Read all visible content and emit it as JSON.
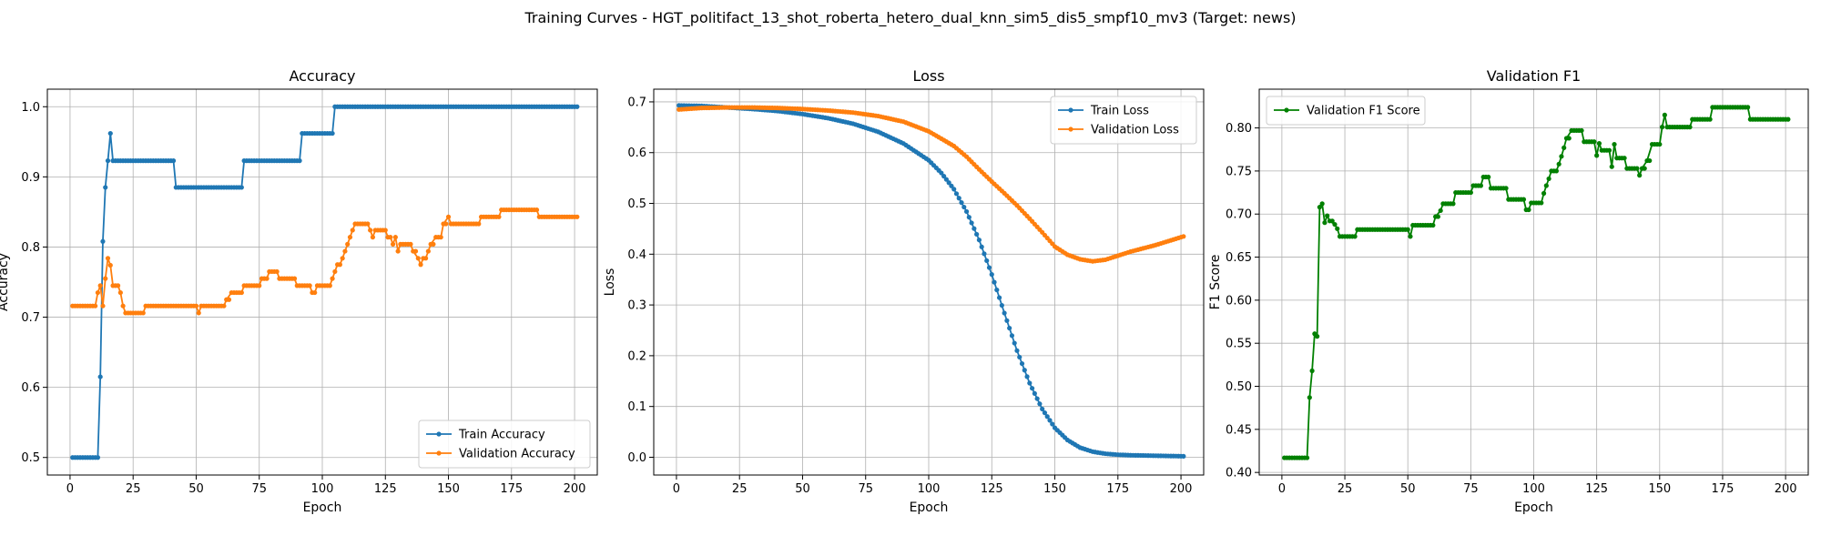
{
  "figure": {
    "suptitle": "Training Curves - HGT_politifact_13_shot_roberta_hetero_dual_knn_sim5_dis5_smpf10_mv3 (Target: news)"
  },
  "colors": {
    "blue": "#1f77b4",
    "orange": "#ff7f0e",
    "green": "#008000",
    "grid": "#b0b0b0"
  },
  "chart_data": [
    {
      "type": "line",
      "title": "Accuracy",
      "xlabel": "Epoch",
      "ylabel": "Accuracy",
      "xlim": [
        -9,
        209
      ],
      "ylim": [
        0.475,
        1.025
      ],
      "xticks": [
        0,
        25,
        50,
        75,
        100,
        125,
        150,
        175,
        200
      ],
      "yticks": [
        0.5,
        0.6,
        0.7,
        0.8,
        0.9,
        1.0
      ],
      "ytick_labels": [
        "0.5",
        "0.6",
        "0.7",
        "0.8",
        "0.9",
        "1.0"
      ],
      "grid": true,
      "legend_position": "lower-right",
      "series": [
        {
          "name": "Train Accuracy",
          "color": "#1f77b4",
          "points": [
            [
              1,
              0.5
            ],
            [
              11,
              0.5
            ],
            [
              12,
              0.615
            ],
            [
              13,
              0.808
            ],
            [
              14,
              0.885
            ],
            [
              15,
              0.923
            ],
            [
              16,
              0.962
            ],
            [
              17,
              0.923
            ],
            [
              41,
              0.923
            ],
            [
              42,
              0.885
            ],
            [
              68,
              0.885
            ],
            [
              69,
              0.923
            ],
            [
              91,
              0.923
            ],
            [
              92,
              0.962
            ],
            [
              104,
              0.962
            ],
            [
              105,
              1.0
            ],
            [
              201,
              1.0
            ]
          ]
        },
        {
          "name": "Validation Accuracy",
          "color": "#ff7f0e",
          "points": [
            [
              1,
              0.716
            ],
            [
              10,
              0.716
            ],
            [
              11,
              0.735
            ],
            [
              12,
              0.745
            ],
            [
              13,
              0.716
            ],
            [
              14,
              0.755
            ],
            [
              15,
              0.784
            ],
            [
              16,
              0.774
            ],
            [
              17,
              0.745
            ],
            [
              19,
              0.745
            ],
            [
              20,
              0.735
            ],
            [
              21,
              0.716
            ],
            [
              22,
              0.706
            ],
            [
              29,
              0.706
            ],
            [
              30,
              0.716
            ],
            [
              50,
              0.716
            ],
            [
              51,
              0.706
            ],
            [
              52,
              0.716
            ],
            [
              61,
              0.716
            ],
            [
              62,
              0.725
            ],
            [
              64,
              0.735
            ],
            [
              68,
              0.735
            ],
            [
              69,
              0.745
            ],
            [
              75,
              0.745
            ],
            [
              76,
              0.755
            ],
            [
              78,
              0.755
            ],
            [
              79,
              0.765
            ],
            [
              82,
              0.765
            ],
            [
              83,
              0.755
            ],
            [
              89,
              0.755
            ],
            [
              90,
              0.745
            ],
            [
              95,
              0.745
            ],
            [
              96,
              0.735
            ],
            [
              97,
              0.735
            ],
            [
              98,
              0.745
            ],
            [
              103,
              0.745
            ],
            [
              104,
              0.755
            ],
            [
              105,
              0.765
            ],
            [
              106,
              0.775
            ],
            [
              107,
              0.775
            ],
            [
              108,
              0.784
            ],
            [
              109,
              0.794
            ],
            [
              110,
              0.804
            ],
            [
              111,
              0.814
            ],
            [
              112,
              0.824
            ],
            [
              113,
              0.833
            ],
            [
              118,
              0.833
            ],
            [
              119,
              0.824
            ],
            [
              120,
              0.814
            ],
            [
              121,
              0.824
            ],
            [
              125,
              0.824
            ],
            [
              126,
              0.814
            ],
            [
              127,
              0.814
            ],
            [
              128,
              0.804
            ],
            [
              129,
              0.814
            ],
            [
              130,
              0.794
            ],
            [
              131,
              0.804
            ],
            [
              135,
              0.804
            ],
            [
              136,
              0.794
            ],
            [
              138,
              0.784
            ],
            [
              139,
              0.775
            ],
            [
              140,
              0.784
            ],
            [
              141,
              0.784
            ],
            [
              142,
              0.794
            ],
            [
              143,
              0.804
            ],
            [
              145,
              0.814
            ],
            [
              147,
              0.814
            ],
            [
              148,
              0.833
            ],
            [
              150,
              0.843
            ],
            [
              151,
              0.833
            ],
            [
              162,
              0.833
            ],
            [
              163,
              0.843
            ],
            [
              170,
              0.843
            ],
            [
              171,
              0.853
            ],
            [
              185,
              0.853
            ],
            [
              186,
              0.843
            ],
            [
              201,
              0.843
            ]
          ]
        }
      ]
    },
    {
      "type": "line",
      "title": "Loss",
      "xlabel": "Epoch",
      "ylabel": "Loss",
      "xlim": [
        -9,
        209
      ],
      "ylim": [
        -0.035,
        0.725
      ],
      "xticks": [
        0,
        25,
        50,
        75,
        100,
        125,
        150,
        175,
        200
      ],
      "yticks": [
        0.0,
        0.1,
        0.2,
        0.3,
        0.4,
        0.5,
        0.6,
        0.7
      ],
      "ytick_labels": [
        "0.0",
        "0.1",
        "0.2",
        "0.3",
        "0.4",
        "0.5",
        "0.6",
        "0.7"
      ],
      "grid": true,
      "legend_position": "upper-right",
      "series": [
        {
          "name": "Train Loss",
          "color": "#1f77b4",
          "points": [
            [
              1,
              0.693
            ],
            [
              10,
              0.692
            ],
            [
              20,
              0.689
            ],
            [
              30,
              0.686
            ],
            [
              40,
              0.682
            ],
            [
              50,
              0.676
            ],
            [
              60,
              0.668
            ],
            [
              70,
              0.657
            ],
            [
              80,
              0.641
            ],
            [
              90,
              0.618
            ],
            [
              100,
              0.585
            ],
            [
              105,
              0.56
            ],
            [
              110,
              0.528
            ],
            [
              115,
              0.484
            ],
            [
              120,
              0.428
            ],
            [
              125,
              0.36
            ],
            [
              130,
              0.284
            ],
            [
              135,
              0.21
            ],
            [
              140,
              0.146
            ],
            [
              145,
              0.095
            ],
            [
              150,
              0.058
            ],
            [
              155,
              0.034
            ],
            [
              160,
              0.019
            ],
            [
              165,
              0.011
            ],
            [
              170,
              0.007
            ],
            [
              175,
              0.005
            ],
            [
              180,
              0.004
            ],
            [
              190,
              0.003
            ],
            [
              201,
              0.002
            ]
          ]
        },
        {
          "name": "Validation Loss",
          "color": "#ff7f0e",
          "points": [
            [
              1,
              0.685
            ],
            [
              10,
              0.688
            ],
            [
              20,
              0.689
            ],
            [
              30,
              0.689
            ],
            [
              40,
              0.688
            ],
            [
              50,
              0.686
            ],
            [
              60,
              0.683
            ],
            [
              70,
              0.679
            ],
            [
              80,
              0.672
            ],
            [
              90,
              0.661
            ],
            [
              100,
              0.642
            ],
            [
              110,
              0.613
            ],
            [
              115,
              0.592
            ],
            [
              120,
              0.567
            ],
            [
              125,
              0.543
            ],
            [
              130,
              0.52
            ],
            [
              135,
              0.496
            ],
            [
              140,
              0.47
            ],
            [
              145,
              0.443
            ],
            [
              150,
              0.415
            ],
            [
              155,
              0.399
            ],
            [
              160,
              0.39
            ],
            [
              165,
              0.386
            ],
            [
              170,
              0.389
            ],
            [
              175,
              0.397
            ],
            [
              180,
              0.405
            ],
            [
              190,
              0.418
            ],
            [
              201,
              0.435
            ]
          ]
        }
      ]
    },
    {
      "type": "line",
      "title": "Validation F1",
      "xlabel": "Epoch",
      "ylabel": "F1 Score",
      "xlim": [
        -9,
        209
      ],
      "ylim": [
        0.397,
        0.845
      ],
      "xticks": [
        0,
        25,
        50,
        75,
        100,
        125,
        150,
        175,
        200
      ],
      "yticks": [
        0.4,
        0.45,
        0.5,
        0.55,
        0.6,
        0.65,
        0.7,
        0.75,
        0.8
      ],
      "ytick_labels": [
        "0.40",
        "0.45",
        "0.50",
        "0.55",
        "0.60",
        "0.65",
        "0.70",
        "0.75",
        "0.80"
      ],
      "grid": true,
      "legend_position": "upper-left",
      "series": [
        {
          "name": "Validation F1 Score",
          "color": "#008000",
          "points": [
            [
              1,
              0.417
            ],
            [
              10,
              0.417
            ],
            [
              11,
              0.487
            ],
            [
              12,
              0.518
            ],
            [
              13,
              0.561
            ],
            [
              14,
              0.558
            ],
            [
              15,
              0.708
            ],
            [
              16,
              0.712
            ],
            [
              17,
              0.69
            ],
            [
              18,
              0.698
            ],
            [
              19,
              0.692
            ],
            [
              21,
              0.688
            ],
            [
              22,
              0.683
            ],
            [
              23,
              0.674
            ],
            [
              29,
              0.674
            ],
            [
              30,
              0.682
            ],
            [
              50,
              0.682
            ],
            [
              51,
              0.674
            ],
            [
              52,
              0.687
            ],
            [
              60,
              0.687
            ],
            [
              61,
              0.697
            ],
            [
              63,
              0.704
            ],
            [
              64,
              0.712
            ],
            [
              68,
              0.712
            ],
            [
              69,
              0.725
            ],
            [
              75,
              0.725
            ],
            [
              76,
              0.733
            ],
            [
              79,
              0.733
            ],
            [
              80,
              0.743
            ],
            [
              82,
              0.743
            ],
            [
              83,
              0.73
            ],
            [
              89,
              0.73
            ],
            [
              90,
              0.717
            ],
            [
              96,
              0.717
            ],
            [
              97,
              0.705
            ],
            [
              98,
              0.705
            ],
            [
              99,
              0.713
            ],
            [
              103,
              0.713
            ],
            [
              104,
              0.724
            ],
            [
              105,
              0.733
            ],
            [
              106,
              0.741
            ],
            [
              107,
              0.75
            ],
            [
              109,
              0.75
            ],
            [
              110,
              0.758
            ],
            [
              111,
              0.767
            ],
            [
              112,
              0.777
            ],
            [
              113,
              0.788
            ],
            [
              115,
              0.797
            ],
            [
              119,
              0.797
            ],
            [
              120,
              0.784
            ],
            [
              124,
              0.784
            ],
            [
              125,
              0.768
            ],
            [
              126,
              0.782
            ],
            [
              127,
              0.774
            ],
            [
              130,
              0.774
            ],
            [
              131,
              0.755
            ],
            [
              132,
              0.781
            ],
            [
              133,
              0.765
            ],
            [
              136,
              0.765
            ],
            [
              137,
              0.753
            ],
            [
              141,
              0.753
            ],
            [
              142,
              0.745
            ],
            [
              143,
              0.753
            ],
            [
              145,
              0.762
            ],
            [
              147,
              0.781
            ],
            [
              150,
              0.781
            ],
            [
              151,
              0.801
            ],
            [
              152,
              0.815
            ],
            [
              153,
              0.801
            ],
            [
              162,
              0.801
            ],
            [
              163,
              0.81
            ],
            [
              170,
              0.81
            ],
            [
              171,
              0.824
            ],
            [
              185,
              0.824
            ],
            [
              186,
              0.81
            ],
            [
              201,
              0.81
            ]
          ]
        }
      ]
    }
  ]
}
